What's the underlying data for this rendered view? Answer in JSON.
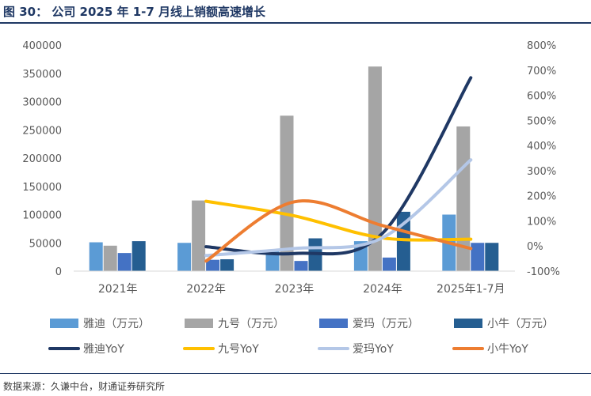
{
  "figure_title": "图 30：   公司 2025 年 1-7 月线上销额高速增长",
  "source": "数据来源：久谦中台，财通证券研究所",
  "chart_data": {
    "type": "bar",
    "categories": [
      "2021年",
      "2022年",
      "2023年",
      "2024年",
      "2025年1-7月"
    ],
    "ylim": [
      0,
      400000
    ],
    "y_ticks": [
      "0",
      "50000",
      "100000",
      "150000",
      "200000",
      "250000",
      "300000",
      "350000",
      "400000"
    ],
    "y2lim": [
      -100,
      800
    ],
    "y2_ticks": [
      "-100%",
      "0%",
      "100%",
      "200%",
      "300%",
      "400%",
      "500%",
      "600%",
      "700%",
      "800%"
    ],
    "grid": false,
    "legend_position": "bottom",
    "bar_series": [
      {
        "name": "雅迪（万元）",
        "color": "#5b9bd5",
        "values": [
          51000,
          50000,
          35000,
          53000,
          100000
        ]
      },
      {
        "name": "九号（万元）",
        "color": "#a5a5a5",
        "values": [
          45000,
          125000,
          275000,
          362000,
          256000
        ]
      },
      {
        "name": "爱玛（万元）",
        "color": "#4472c4",
        "values": [
          32000,
          20000,
          18000,
          24000,
          50000
        ]
      },
      {
        "name": "小牛（万元）",
        "color": "#255e91",
        "values": [
          53000,
          21000,
          58000,
          105000,
          50000
        ]
      }
    ],
    "line_series": [
      {
        "name": "雅迪YoY",
        "color": "#1f3864",
        "values": [
          null,
          -3,
          -30,
          51,
          670
        ]
      },
      {
        "name": "九号YoY",
        "color": "#ffc000",
        "values": [
          null,
          178,
          120,
          32,
          27
        ]
      },
      {
        "name": "爱玛YoY",
        "color": "#b4c7e7",
        "values": [
          null,
          -38,
          -10,
          33,
          343
        ]
      },
      {
        "name": "小牛YoY",
        "color": "#ed7d31",
        "values": [
          null,
          -60,
          176,
          81,
          -10
        ]
      }
    ]
  }
}
